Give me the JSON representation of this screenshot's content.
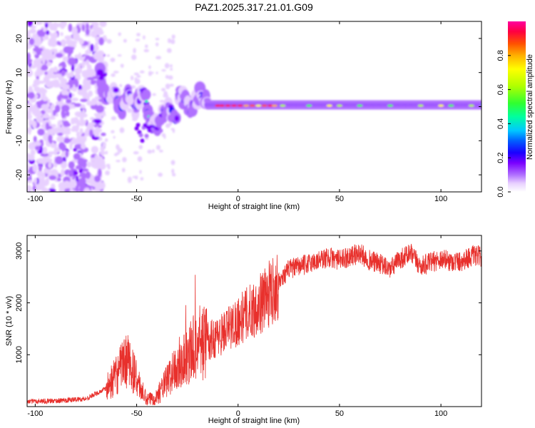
{
  "title": "PAZ1.2025.317.21.01.G09",
  "colors": {
    "snr_line": "#e8302c",
    "frame": "#000000",
    "colormap": [
      "#ffffff",
      "#e8d0ff",
      "#b070ff",
      "#7a00ff",
      "#1a00ff",
      "#0060ff",
      "#00c8ff",
      "#00ffa0",
      "#30ff30",
      "#b0ff00",
      "#ffff00",
      "#ffb000",
      "#ff5000",
      "#ff0040",
      "#ff00a0"
    ]
  },
  "chart_data": [
    {
      "type": "heatmap",
      "name": "spectrogram",
      "xlabel": "Height of straight line (km)",
      "ylabel": "Frequency (Hz)",
      "xlim": [
        -104,
        120
      ],
      "ylim": [
        -25,
        25
      ],
      "xticks": [
        -100,
        -50,
        0,
        50,
        100
      ],
      "xtick_labels": [
        "-100",
        "-50",
        "0",
        "50",
        "100"
      ],
      "yticks": [
        -20,
        -10,
        0,
        10,
        20
      ],
      "ytick_labels": [
        "-20",
        "-10",
        "0",
        "10",
        "20"
      ],
      "description_of_content": {
        "noise_region_km": [
          -104,
          -68
        ],
        "track_start_km": -68,
        "main_track_from_km": -15,
        "main_track_freq_hz": 0.5
      },
      "colorbar": {
        "label": "Normalized spectral amplitude",
        "range": [
          0,
          1
        ],
        "ticks": [
          0.0,
          0.2,
          0.4,
          0.6,
          0.8
        ],
        "tick_labels": [
          "0.0",
          "0.2",
          "0.4",
          "0.6",
          "0.8"
        ]
      }
    },
    {
      "type": "line",
      "name": "snr",
      "xlabel": "Height of straight line (km)",
      "ylabel": "SNR (10 * v/v)",
      "xlim": [
        -104,
        120
      ],
      "ylim": [
        0,
        3300
      ],
      "xticks": [
        -100,
        -50,
        0,
        50,
        100
      ],
      "xtick_labels": [
        "-100",
        "-50",
        "0",
        "50",
        "100"
      ],
      "yticks": [
        1000,
        2000,
        3000
      ],
      "ytick_labels": [
        "1000",
        "2000",
        "3000"
      ],
      "series": [
        {
          "name": "SNR",
          "x": [
            -104,
            -90,
            -75,
            -65,
            -60,
            -55,
            -52,
            -48,
            -45,
            -40,
            -35,
            -30,
            -25,
            -20,
            -15,
            -10,
            -5,
            0,
            5,
            10,
            15,
            20,
            25,
            30,
            40,
            45,
            50,
            55,
            60,
            65,
            70,
            75,
            80,
            85,
            90,
            95,
            100,
            105,
            110,
            115,
            120
          ],
          "values": [
            100,
            110,
            150,
            350,
            600,
            900,
            700,
            350,
            120,
            200,
            500,
            800,
            1000,
            1200,
            1250,
            1350,
            1500,
            1650,
            1800,
            1950,
            2150,
            2400,
            2650,
            2700,
            2820,
            2880,
            2820,
            2900,
            2950,
            2820,
            2750,
            2650,
            2850,
            2950,
            2700,
            2780,
            2850,
            2800,
            2800,
            2900,
            2900
          ]
        }
      ]
    }
  ]
}
